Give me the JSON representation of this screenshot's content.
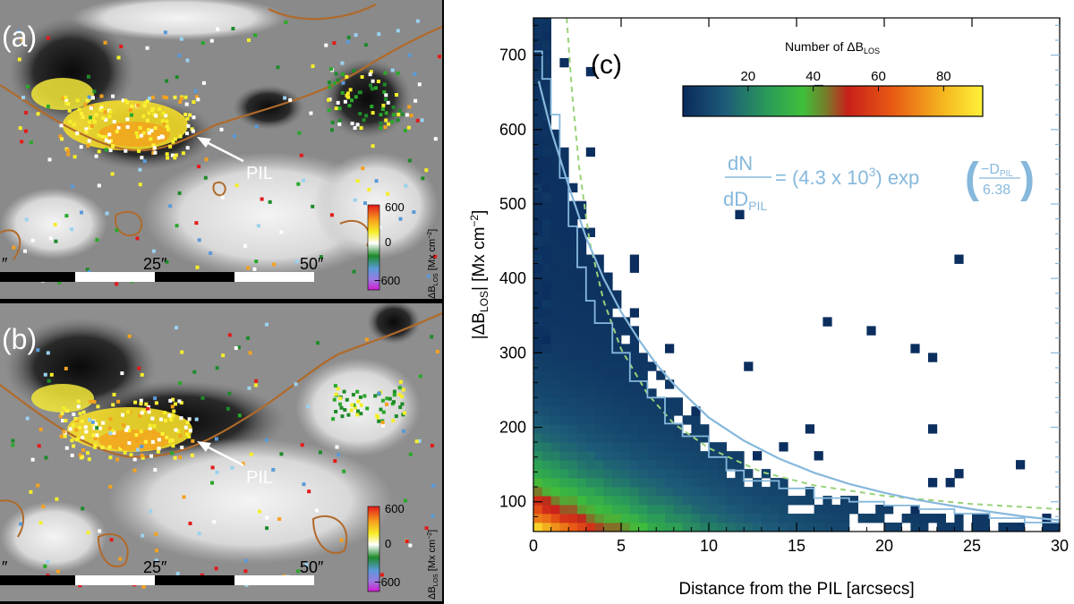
{
  "figure": {
    "panel_a": {
      "label": "(a)",
      "pil_label": "PIL",
      "colorbar_ticks": [
        "600",
        "0",
        "−600"
      ],
      "colorbar_title": "ΔB",
      "colorbar_title_sub": "LOS",
      "colorbar_unit": " [Mx cm",
      "colorbar_unit_sup": "−2",
      "colorbar_unit_end": "]",
      "scale_ticks": [
        "″",
        "25″",
        "50″"
      ]
    },
    "panel_b": {
      "label": "(b)",
      "pil_label": "PIL",
      "colorbar_ticks": [
        "600",
        "0",
        "−600"
      ],
      "colorbar_title": "ΔB",
      "colorbar_title_sub": "LOS",
      "colorbar_unit": " [Mx cm",
      "colorbar_unit_sup": "−2",
      "colorbar_unit_end": "]",
      "scale_ticks": [
        "″",
        "25″",
        "50″"
      ]
    }
  },
  "chart_data": {
    "type": "heatmap",
    "panel_label": "(c)",
    "xlabel": "Distance from the PIL [arcsecs]",
    "ylabel_pre": "|ΔB",
    "ylabel_sub": "LOS",
    "ylabel_post": "| [Mx cm",
    "ylabel_sup": "−2",
    "ylabel_end": "]",
    "xlim": [
      0,
      30
    ],
    "ylim": [
      60,
      750
    ],
    "xticks": [
      0,
      5,
      10,
      15,
      20,
      25,
      30
    ],
    "yticks": [
      100,
      200,
      300,
      400,
      500,
      600,
      700
    ],
    "colorbar": {
      "title_pre": "Number of ΔB",
      "title_sub": "LOS",
      "ticks": [
        20,
        40,
        60,
        80
      ],
      "range": [
        0,
        92
      ],
      "colors": [
        "#0a2a5c",
        "#1d5a78",
        "#2a9a5a",
        "#3fbf3a",
        "#7a7a2a",
        "#c8201a",
        "#e85a14",
        "#f4b21e",
        "#fff23a"
      ]
    },
    "fit": {
      "text_lhs_num": "dN",
      "text_lhs_den": "dD",
      "text_lhs_den_sub": "PIL",
      "text_rhs_pre": "= (4.3 x 10",
      "text_rhs_sup": "3",
      "text_rhs_post": ") exp",
      "text_exp_num": "−D",
      "text_exp_num_sub": "PIL",
      "text_exp_den": "6.38",
      "amplitude": 4300,
      "scale": 6.38,
      "color": "#86b8dc"
    },
    "fit_curve": [
      [
        0.3,
        665
      ],
      [
        1,
        600
      ],
      [
        2,
        525
      ],
      [
        3,
        455
      ],
      [
        4,
        400
      ],
      [
        5,
        355
      ],
      [
        6,
        318
      ],
      [
        7,
        285
      ],
      [
        8,
        258
      ],
      [
        10,
        213
      ],
      [
        12,
        182
      ],
      [
        14,
        158
      ],
      [
        16,
        139
      ],
      [
        18,
        124
      ],
      [
        20,
        112
      ],
      [
        22,
        102
      ],
      [
        25,
        90
      ],
      [
        28,
        80
      ],
      [
        30,
        75
      ]
    ],
    "dashed_curve": [
      [
        1.9,
        750
      ],
      [
        2.2,
        650
      ],
      [
        2.6,
        550
      ],
      [
        3.2,
        450
      ],
      [
        4,
        370
      ],
      [
        5,
        305
      ],
      [
        6.5,
        245
      ],
      [
        8,
        205
      ],
      [
        10,
        172
      ],
      [
        13,
        140
      ],
      [
        16,
        122
      ],
      [
        20,
        108
      ],
      [
        25,
        97
      ],
      [
        30,
        90
      ]
    ],
    "dashed_color": "#9ad27a",
    "hist_step": [
      [
        0.5,
        705
      ],
      [
        1,
        668
      ],
      [
        1.5,
        620
      ],
      [
        2,
        535
      ],
      [
        2.5,
        470
      ],
      [
        3,
        415
      ],
      [
        3.5,
        370
      ],
      [
        4.5,
        340
      ],
      [
        5.5,
        300
      ],
      [
        6.5,
        262
      ],
      [
        7.5,
        240
      ],
      [
        8.5,
        205
      ],
      [
        10,
        188
      ],
      [
        11,
        160
      ],
      [
        12,
        142
      ],
      [
        14,
        128
      ],
      [
        16,
        118
      ],
      [
        18,
        105
      ],
      [
        20,
        100
      ],
      [
        22,
        95
      ],
      [
        24,
        90
      ],
      [
        26,
        84
      ],
      [
        28,
        78
      ],
      [
        30,
        72
      ]
    ]
  }
}
